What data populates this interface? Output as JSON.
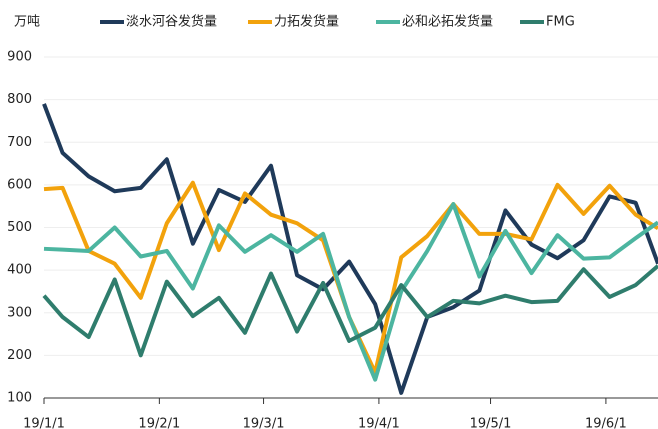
{
  "chart_data": {
    "type": "line",
    "y_label": "万吨",
    "x": [
      "19/1/1",
      "19/1/6",
      "19/1/13",
      "19/1/20",
      "19/1/27",
      "19/2/3",
      "19/2/10",
      "19/2/17",
      "19/2/24",
      "19/3/3",
      "19/3/10",
      "19/3/17",
      "19/3/24",
      "19/3/31",
      "19/4/7",
      "19/4/14",
      "19/4/21",
      "19/4/28",
      "19/5/5",
      "19/5/12",
      "19/5/19",
      "19/5/26",
      "19/6/2",
      "19/6/9",
      "19/6/15"
    ],
    "series": [
      {
        "name": "淡水河谷发货量",
        "color": "#1f3a5a",
        "values": [
          790,
          675,
          620,
          585,
          593,
          660,
          462,
          588,
          560,
          645,
          388,
          355,
          420,
          320,
          112,
          290,
          313,
          352,
          540,
          460,
          428,
          470,
          573,
          558,
          415
        ]
      },
      {
        "name": "力拓发货量",
        "color": "#f2a20c",
        "values": [
          590,
          593,
          445,
          415,
          335,
          510,
          605,
          447,
          580,
          530,
          510,
          470,
          290,
          160,
          430,
          480,
          555,
          485,
          485,
          472,
          600,
          532,
          598,
          530,
          498
        ]
      },
      {
        "name": "必和必拓发货量",
        "color": "#4cb5a0",
        "values": [
          450,
          448,
          445,
          500,
          432,
          445,
          357,
          505,
          443,
          482,
          443,
          485,
          290,
          143,
          350,
          445,
          555,
          385,
          492,
          393,
          482,
          427,
          430,
          475,
          512
        ]
      },
      {
        "name": "FMG",
        "color": "#2f7d6d",
        "values": [
          340,
          290,
          243,
          378,
          200,
          373,
          292,
          335,
          253,
          392,
          256,
          370,
          234,
          265,
          365,
          290,
          328,
          322,
          340,
          325,
          328,
          402,
          337,
          365,
          410
        ]
      }
    ],
    "xlim": [
      "19/1/1",
      "19/6/15"
    ],
    "xticks": [
      "19/1/1",
      "19/2/1",
      "19/3/1",
      "19/4/1",
      "19/5/1",
      "19/6/1"
    ],
    "ylim": [
      100,
      900
    ],
    "yticks": [
      100,
      200,
      300,
      400,
      500,
      600,
      700,
      800,
      900
    ],
    "grid": true,
    "legend": "top"
  }
}
